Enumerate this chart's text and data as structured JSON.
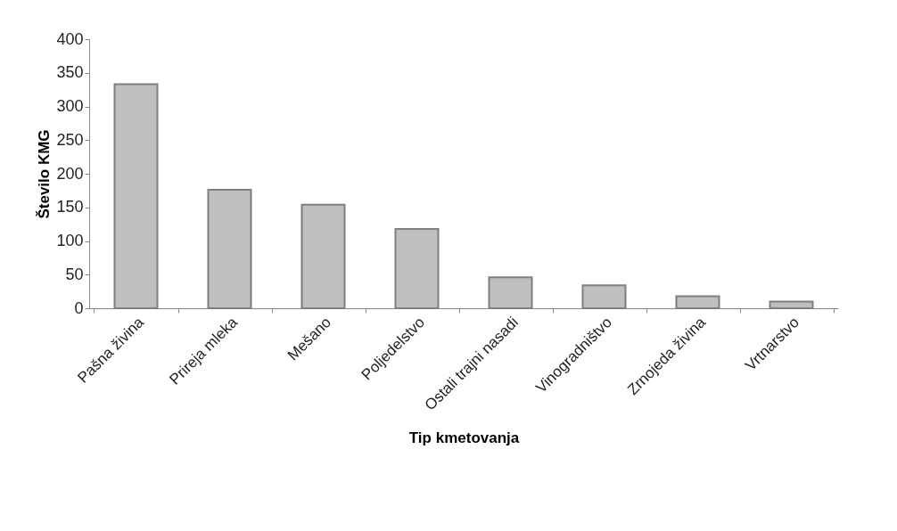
{
  "chart_data": {
    "type": "bar",
    "xlabel": "Tip kmetovanja",
    "ylabel": "Število KMG",
    "categories": [
      "Pašna živina",
      "Prireja mleka",
      "Mešano",
      "Poljedelstvo",
      "Ostali trajni nasadi",
      "Vinogradništvo",
      "Zrnojeda živina",
      "Vrtnarstvo"
    ],
    "values": [
      333,
      176,
      154,
      118,
      46,
      34,
      18,
      10
    ],
    "color": "#bfbfbf",
    "ylim": [
      0,
      400
    ],
    "yticks": [
      0,
      50,
      100,
      150,
      200,
      250,
      300,
      350,
      400
    ],
    "grid": false
  }
}
